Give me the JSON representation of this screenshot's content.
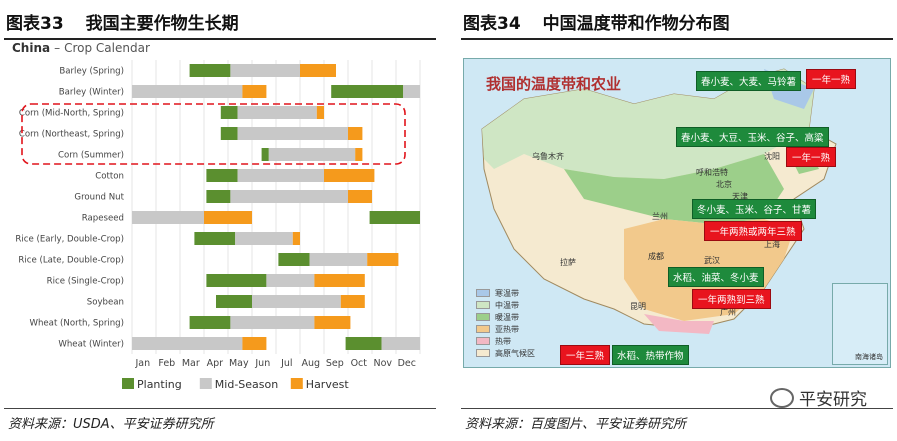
{
  "left": {
    "fig_num": "图表33",
    "fig_title": "我国主要作物生长期",
    "source": "资料来源：USDA、平安证券研究所"
  },
  "right": {
    "fig_num": "图表34",
    "fig_title": "中国温度带和作物分布图",
    "source": "资料来源：百度图片、平安证券研究所",
    "map_title": "我国的温度带和农业",
    "crop_labels": [
      "春小麦、大麦、马铃薯",
      "春小麦、大豆、玉米、谷子、高粱",
      "冬小麦、玉米、谷子、甘薯",
      "水稻、油菜、冬小麦",
      "水稻、热带作物"
    ],
    "system_labels": [
      "一年一熟",
      "一年一熟",
      "一年两熟或两年三熟",
      "一年两熟到三熟",
      "一年三熟"
    ],
    "legend": [
      {
        "label": "寒温带",
        "color": "#a9c8e8"
      },
      {
        "label": "中温带",
        "color": "#cfe6c4"
      },
      {
        "label": "暖温带",
        "color": "#9ccf8a"
      },
      {
        "label": "亚热带",
        "color": "#f2c98c"
      },
      {
        "label": "热带",
        "color": "#f3b8c4"
      },
      {
        "label": "高原气候区",
        "color": "#f5ead0"
      }
    ],
    "cities": [
      "乌鲁木齐",
      "呼和浩特",
      "北京",
      "沈阳",
      "天津",
      "兰州",
      "上海",
      "成都",
      "武汉",
      "昆明",
      "广州",
      "拉萨"
    ],
    "inset_label": "南海诸岛"
  },
  "wechat_name": "平安研究",
  "chart_data": {
    "type": "bar",
    "title": "China",
    "subtitle": "Crop Calendar",
    "x_ticks": [
      "Jan",
      "Feb",
      "Mar",
      "Apr",
      "May",
      "Jun",
      "Jul",
      "Aug",
      "Sep",
      "Oct",
      "Nov",
      "Dec"
    ],
    "xlim": [
      0,
      12
    ],
    "legend_position": "bottom",
    "phases": [
      {
        "name": "Planting",
        "color": "#5b8f2f"
      },
      {
        "name": "Mid-Season",
        "color": "#c8c8c8"
      },
      {
        "name": "Harvest",
        "color": "#f59a1c"
      }
    ],
    "crops": [
      {
        "name": "Barley (Spring)",
        "segments": [
          [
            2.4,
            4.1,
            0
          ],
          [
            4.1,
            7.0,
            1
          ],
          [
            7.0,
            8.5,
            2
          ]
        ]
      },
      {
        "name": "Barley (Winter)",
        "segments": [
          [
            0,
            4.6,
            1
          ],
          [
            4.6,
            5.6,
            2
          ],
          [
            8.3,
            11.3,
            0
          ],
          [
            11.3,
            12.0,
            1
          ]
        ]
      },
      {
        "name": "Corn (Mid-North, Spring)",
        "segments": [
          [
            3.7,
            4.4,
            0
          ],
          [
            4.4,
            7.7,
            1
          ],
          [
            7.7,
            8.0,
            2
          ]
        ]
      },
      {
        "name": "Corn (Northeast, Spring)",
        "segments": [
          [
            3.7,
            4.4,
            0
          ],
          [
            4.4,
            9.0,
            1
          ],
          [
            9.0,
            9.6,
            2
          ]
        ]
      },
      {
        "name": "Corn (Summer)",
        "segments": [
          [
            5.4,
            5.7,
            0
          ],
          [
            5.7,
            9.3,
            1
          ],
          [
            9.3,
            9.6,
            2
          ]
        ]
      },
      {
        "name": "Cotton",
        "segments": [
          [
            3.1,
            4.4,
            0
          ],
          [
            4.4,
            8.0,
            1
          ],
          [
            8.0,
            10.1,
            2
          ]
        ]
      },
      {
        "name": "Ground Nut",
        "segments": [
          [
            3.1,
            4.1,
            0
          ],
          [
            4.1,
            9.0,
            1
          ],
          [
            9.0,
            10.0,
            2
          ]
        ]
      },
      {
        "name": "Rapeseed",
        "segments": [
          [
            0,
            3.0,
            1
          ],
          [
            3.0,
            5.0,
            2
          ],
          [
            9.9,
            12.0,
            0
          ]
        ]
      },
      {
        "name": "Rice (Early, Double-Crop)",
        "segments": [
          [
            2.6,
            4.3,
            0
          ],
          [
            4.3,
            6.7,
            1
          ],
          [
            6.7,
            7.0,
            2
          ]
        ]
      },
      {
        "name": "Rice (Late, Double-Crop)",
        "segments": [
          [
            6.1,
            7.4,
            0
          ],
          [
            7.4,
            9.8,
            1
          ],
          [
            9.8,
            11.1,
            2
          ]
        ]
      },
      {
        "name": "Rice (Single-Crop)",
        "segments": [
          [
            3.1,
            5.6,
            0
          ],
          [
            5.6,
            7.6,
            1
          ],
          [
            7.6,
            9.7,
            2
          ]
        ]
      },
      {
        "name": "Soybean",
        "segments": [
          [
            3.5,
            5.0,
            0
          ],
          [
            5.0,
            8.7,
            1
          ],
          [
            8.7,
            9.7,
            2
          ]
        ]
      },
      {
        "name": "Wheat (North, Spring)",
        "segments": [
          [
            2.4,
            4.1,
            0
          ],
          [
            4.1,
            7.6,
            1
          ],
          [
            7.6,
            9.1,
            2
          ]
        ]
      },
      {
        "name": "Wheat (Winter)",
        "segments": [
          [
            0,
            4.6,
            1
          ],
          [
            4.6,
            5.6,
            2
          ],
          [
            8.9,
            10.4,
            0
          ],
          [
            10.4,
            12.0,
            1
          ]
        ]
      }
    ]
  }
}
